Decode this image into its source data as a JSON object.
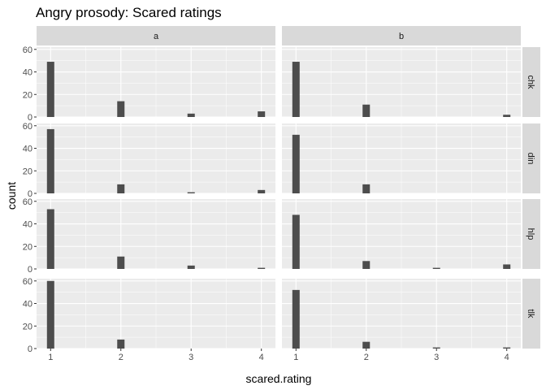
{
  "chart_data": {
    "type": "bar",
    "title": "Angry prosody: Scared ratings",
    "xlabel": "scared.rating",
    "ylabel": "count",
    "x_ticks": [
      1,
      2,
      3,
      4
    ],
    "y_ticks": [
      0,
      20,
      40,
      60
    ],
    "xlim": [
      0.8,
      4.2
    ],
    "ylim": [
      0,
      62
    ],
    "grid": true,
    "facet_columns": [
      "a",
      "b"
    ],
    "facet_rows": [
      "chk",
      "din",
      "hlp",
      "tlk"
    ],
    "colors": {
      "bar": "#4d4d4d",
      "panel": "#ebebeb",
      "strip": "#d9d9d9",
      "grid": "#ffffff"
    },
    "panels": [
      {
        "col": "a",
        "row": "chk",
        "x": [
          1,
          2,
          3,
          4
        ],
        "values": [
          49,
          14,
          3,
          5
        ]
      },
      {
        "col": "b",
        "row": "chk",
        "x": [
          1,
          2,
          3,
          4
        ],
        "values": [
          49,
          11,
          0,
          2
        ]
      },
      {
        "col": "a",
        "row": "din",
        "x": [
          1,
          2,
          3,
          4
        ],
        "values": [
          57,
          8,
          1,
          3
        ]
      },
      {
        "col": "b",
        "row": "din",
        "x": [
          1,
          2,
          3,
          4
        ],
        "values": [
          52,
          8,
          0,
          0
        ]
      },
      {
        "col": "a",
        "row": "hlp",
        "x": [
          1,
          2,
          3,
          4
        ],
        "values": [
          53,
          11,
          3,
          1
        ]
      },
      {
        "col": "b",
        "row": "hlp",
        "x": [
          1,
          2,
          3,
          4
        ],
        "values": [
          48,
          7,
          1,
          4
        ]
      },
      {
        "col": "a",
        "row": "tlk",
        "x": [
          1,
          2,
          3,
          4
        ],
        "values": [
          60,
          8,
          0,
          0
        ]
      },
      {
        "col": "b",
        "row": "tlk",
        "x": [
          1,
          2,
          3,
          4
        ],
        "values": [
          52,
          6,
          1,
          1
        ]
      }
    ]
  }
}
